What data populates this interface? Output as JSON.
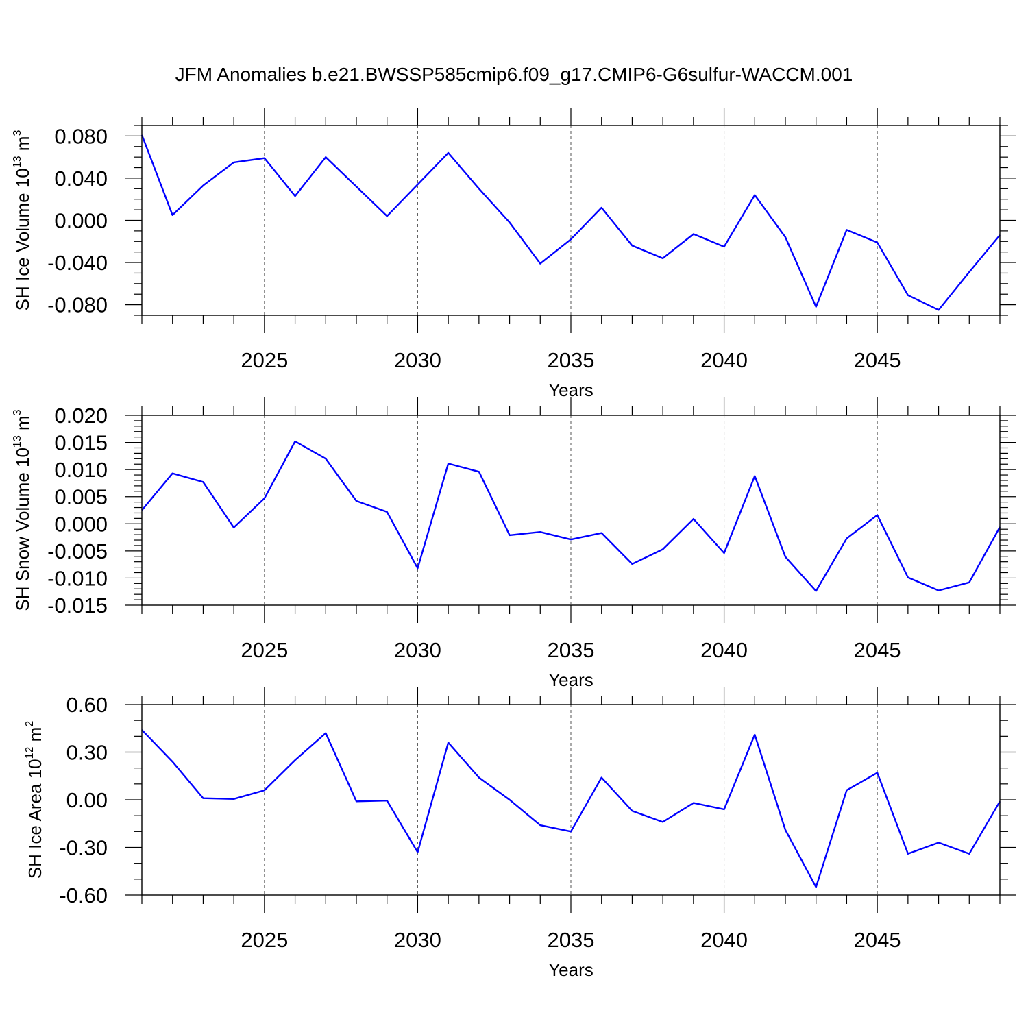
{
  "figure": {
    "title": "JFM Anomalies b.e21.BWSSP585cmip6.f09_g17.CMIP6-G6sulfur-WACCM.001"
  },
  "colors": {
    "series": "#0000ff",
    "axis": "#000000",
    "grid": "#555555"
  },
  "chart_data": [
    {
      "type": "line",
      "name": "ice-volume",
      "title": "",
      "xlabel": "Years",
      "ylabel": {
        "prefix": "SH Ice Volume 10",
        "exp1": "13",
        "mid": " m",
        "exp2": "3"
      },
      "xlim": [
        2021,
        2049
      ],
      "ylim": [
        -0.09,
        0.09
      ],
      "xticks": [
        "2025",
        "2030",
        "2035",
        "2040",
        "2045"
      ],
      "xtick_values": [
        2025,
        2030,
        2035,
        2040,
        2045
      ],
      "yticks": [
        "0.080",
        "0.040",
        "0.000",
        "-0.040",
        "-0.080"
      ],
      "ytick_values": [
        0.08,
        0.04,
        0.0,
        -0.04,
        -0.08
      ],
      "yminor_step": 0.01,
      "grid": "dashed vertical at major x ticks",
      "x": [
        2021,
        2022,
        2023,
        2024,
        2025,
        2026,
        2027,
        2028,
        2029,
        2030,
        2031,
        2032,
        2033,
        2034,
        2035,
        2036,
        2037,
        2038,
        2039,
        2040,
        2041,
        2042,
        2043,
        2044,
        2045,
        2046,
        2047,
        2048,
        2049
      ],
      "y": [
        0.081,
        0.005,
        0.033,
        0.055,
        0.059,
        0.023,
        0.06,
        0.032,
        0.004,
        0.034,
        0.064,
        0.03,
        -0.002,
        -0.041,
        -0.018,
        0.012,
        -0.024,
        -0.036,
        -0.013,
        -0.025,
        0.024,
        -0.016,
        -0.082,
        -0.009,
        -0.021,
        -0.071,
        -0.085,
        -0.049,
        -0.014
      ]
    },
    {
      "type": "line",
      "name": "snow-volume",
      "title": "",
      "xlabel": "Years",
      "ylabel": {
        "prefix": "SH Snow Volume 10",
        "exp1": "13",
        "mid": " m",
        "exp2": "3"
      },
      "xlim": [
        2021,
        2049
      ],
      "ylim": [
        -0.015,
        0.02
      ],
      "xticks": [
        "2025",
        "2030",
        "2035",
        "2040",
        "2045"
      ],
      "xtick_values": [
        2025,
        2030,
        2035,
        2040,
        2045
      ],
      "yticks": [
        "0.020",
        "0.015",
        "0.010",
        "0.005",
        "0.000",
        "-0.005",
        "-0.010",
        "-0.015"
      ],
      "ytick_values": [
        0.02,
        0.015,
        0.01,
        0.005,
        0.0,
        -0.005,
        -0.01,
        -0.015
      ],
      "yminor_step": 0.001,
      "grid": "dashed vertical at major x ticks",
      "x": [
        2021,
        2022,
        2023,
        2024,
        2025,
        2026,
        2027,
        2028,
        2029,
        2030,
        2031,
        2032,
        2033,
        2034,
        2035,
        2036,
        2037,
        2038,
        2039,
        2040,
        2041,
        2042,
        2043,
        2044,
        2045,
        2046,
        2047,
        2048,
        2049
      ],
      "y": [
        0.0025,
        0.0093,
        0.0077,
        -0.0007,
        0.0047,
        0.0152,
        0.012,
        0.0042,
        0.0022,
        -0.0082,
        0.0111,
        0.0096,
        -0.0021,
        -0.0015,
        -0.0029,
        -0.0017,
        -0.0074,
        -0.0047,
        0.0009,
        -0.0054,
        0.0088,
        -0.0061,
        -0.0124,
        -0.0027,
        0.0016,
        -0.0099,
        -0.0123,
        -0.0108,
        -0.0006
      ]
    },
    {
      "type": "line",
      "name": "ice-area",
      "title": "",
      "xlabel": "Years",
      "ylabel": {
        "prefix": "SH Ice Area 10",
        "exp1": "12",
        "mid": " m",
        "exp2": "2"
      },
      "xlim": [
        2021,
        2049
      ],
      "ylim": [
        -0.6,
        0.6
      ],
      "xticks": [
        "2025",
        "2030",
        "2035",
        "2040",
        "2045"
      ],
      "xtick_values": [
        2025,
        2030,
        2035,
        2040,
        2045
      ],
      "yticks": [
        "0.60",
        "0.30",
        "0.00",
        "-0.30",
        "-0.60"
      ],
      "ytick_values": [
        0.6,
        0.3,
        0.0,
        -0.3,
        -0.6
      ],
      "yminor_step": 0.1,
      "grid": "dashed vertical at major x ticks",
      "x": [
        2021,
        2022,
        2023,
        2024,
        2025,
        2026,
        2027,
        2028,
        2029,
        2030,
        2031,
        2032,
        2033,
        2034,
        2035,
        2036,
        2037,
        2038,
        2039,
        2040,
        2041,
        2042,
        2043,
        2044,
        2045,
        2046,
        2047,
        2048,
        2049
      ],
      "y": [
        0.44,
        0.24,
        0.01,
        0.005,
        0.06,
        0.25,
        0.42,
        -0.01,
        -0.005,
        -0.33,
        0.36,
        0.14,
        0.0,
        -0.16,
        -0.2,
        0.14,
        -0.07,
        -0.14,
        -0.02,
        -0.06,
        0.41,
        -0.19,
        -0.55,
        0.06,
        0.17,
        -0.34,
        -0.27,
        -0.34,
        -0.01
      ]
    }
  ]
}
